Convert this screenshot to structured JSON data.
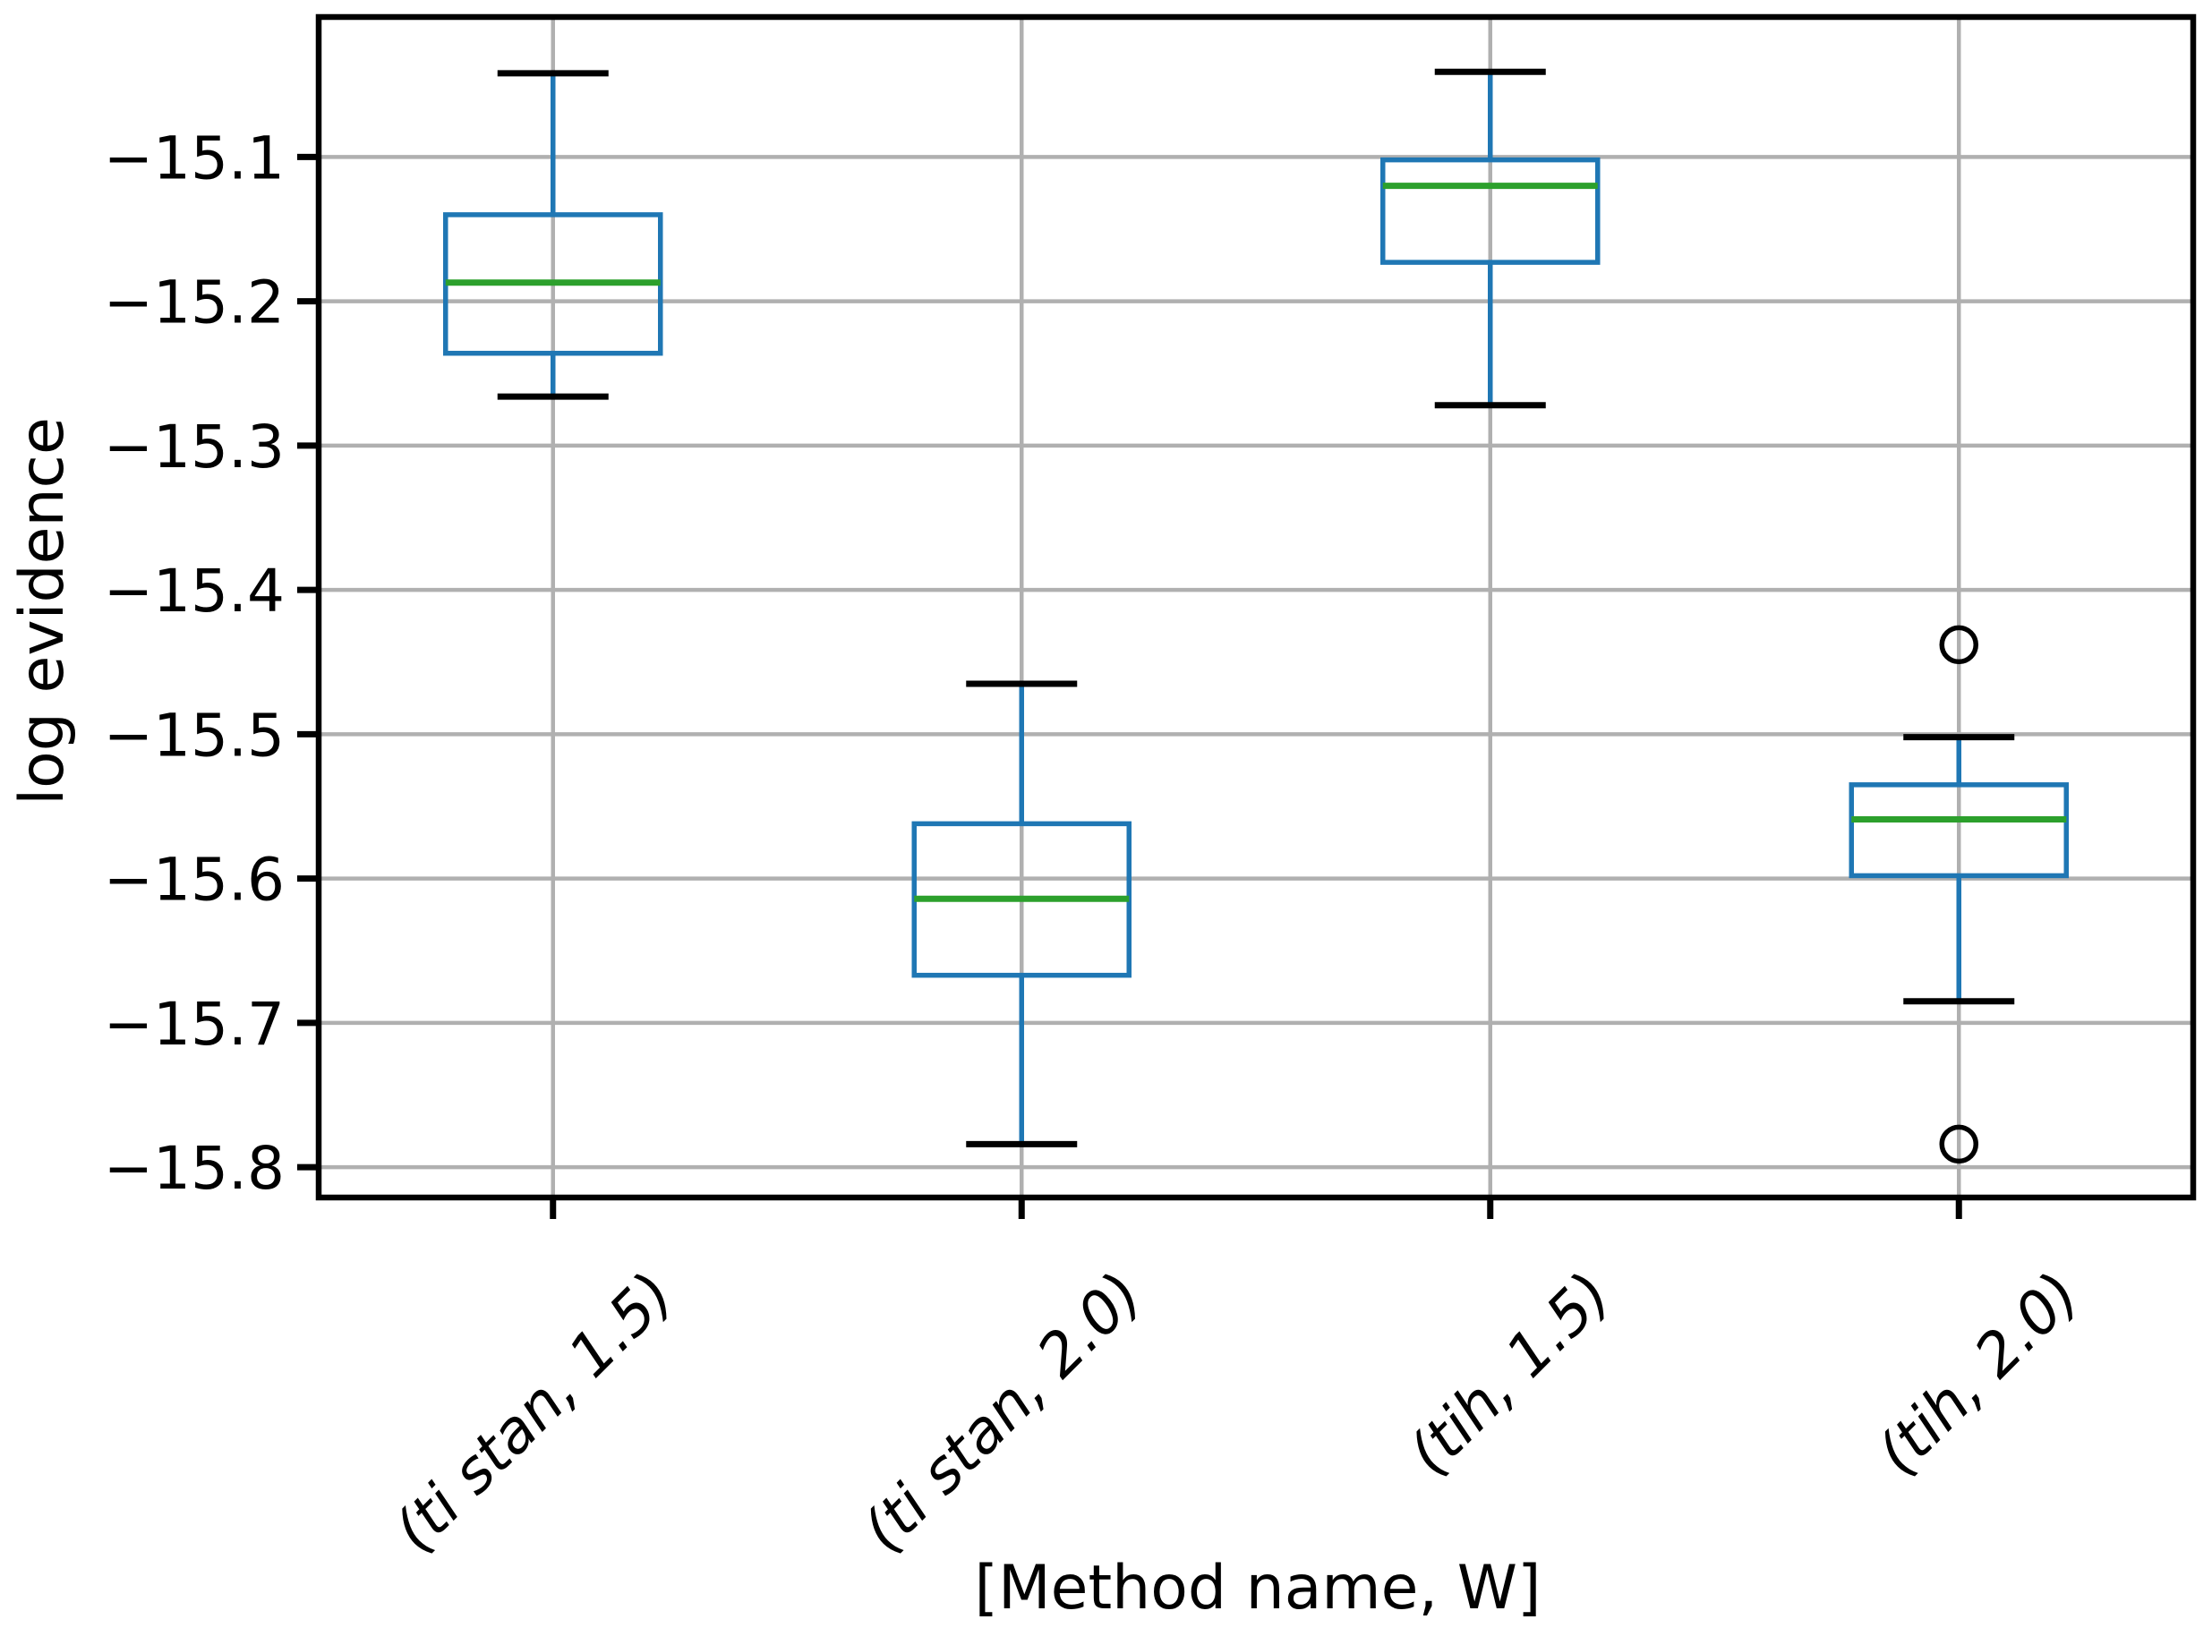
{
  "chart_data": {
    "type": "box",
    "title": "",
    "xlabel": "[Method name, W]",
    "ylabel": "log evidence",
    "categories": [
      "(ti stan, 1.5)",
      "(ti stan, 2.0)",
      "(tih, 1.5)",
      "(tih, 2.0)"
    ],
    "series": [
      {
        "label": "(ti stan, 1.5)",
        "whislo": -15.266,
        "q1": -15.236,
        "med": -15.187,
        "q3": -15.14,
        "whishi": -15.042,
        "fliers": []
      },
      {
        "label": "(ti stan, 2.0)",
        "whislo": -15.784,
        "q1": -15.667,
        "med": -15.614,
        "q3": -15.562,
        "whishi": -15.465,
        "fliers": []
      },
      {
        "label": "(tih, 1.5)",
        "whislo": -15.272,
        "q1": -15.173,
        "med": -15.12,
        "q3": -15.102,
        "whishi": -15.041,
        "fliers": []
      },
      {
        "label": "(tih, 2.0)",
        "whislo": -15.685,
        "q1": -15.598,
        "med": -15.559,
        "q3": -15.535,
        "whishi": -15.502,
        "fliers": [
          -15.438,
          -15.784
        ]
      }
    ],
    "ylim": [
      -15.821,
      -15.003
    ],
    "yticks": [
      -15.1,
      -15.2,
      -15.3,
      -15.4,
      -15.5,
      -15.6,
      -15.7,
      -15.8
    ],
    "ytick_labels": [
      "−15.1",
      "−15.2",
      "−15.3",
      "−15.4",
      "−15.5",
      "−15.6",
      "−15.7",
      "−15.8"
    ],
    "grid": true,
    "legend": "none",
    "colors": {
      "box": "#1f77b4",
      "whisker": "#1f77b4",
      "median": "#2ca02c",
      "cap": "#000000",
      "flier": "#000000",
      "grid": "#b0b0b0",
      "spine": "#000000",
      "text": "#000000",
      "background": "#ffffff"
    }
  }
}
